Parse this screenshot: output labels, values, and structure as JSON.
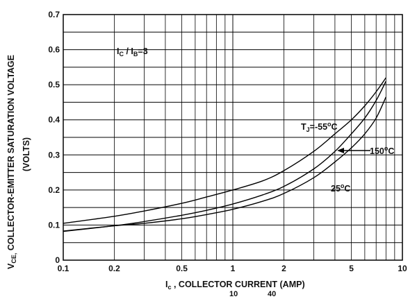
{
  "chart_data": {
    "type": "line",
    "xscale": "log",
    "xlim": [
      0.1,
      10
    ],
    "ylim": [
      0,
      0.7
    ],
    "grid": true,
    "xlabel_prefix": "I",
    "xlabel_sub": "c",
    "xlabel_rest": " , COLLECTOR CURRENT (AMP)",
    "ylabel_line1_prefix": "V",
    "ylabel_line1_sub": "CE,",
    "ylabel_line1_rest": " COLLECTOR-EMITTER SATURATION VOLTAGE",
    "ylabel_line2": "(VOLTS)",
    "x_ticks": [
      {
        "value": 0.1,
        "label": "0.1"
      },
      {
        "value": 0.2,
        "label": "0.2"
      },
      {
        "value": 0.5,
        "label": "0.5"
      },
      {
        "value": 1,
        "label": "1"
      },
      {
        "value": 2,
        "label": "2"
      },
      {
        "value": 5,
        "label": "5"
      },
      {
        "value": 10,
        "label": "10"
      }
    ],
    "y_ticks": [
      {
        "value": 0,
        "label": "0"
      },
      {
        "value": 0.1,
        "label": "0.1"
      },
      {
        "value": 0.2,
        "label": "0.2"
      },
      {
        "value": 0.3,
        "label": "0.3"
      },
      {
        "value": 0.4,
        "label": "0.4"
      },
      {
        "value": 0.5,
        "label": "0.5"
      },
      {
        "value": 0.6,
        "label": "0.6"
      },
      {
        "value": 0.7,
        "label": "0.7"
      }
    ],
    "condition": {
      "I1": "I",
      "s1": "C",
      "slash": " / I",
      "s2": "B",
      "rest": "=3"
    },
    "series": [
      {
        "name": "T_J=-55°C",
        "x": [
          0.1,
          0.2,
          0.3,
          0.5,
          0.7,
          1,
          1.5,
          2,
          3,
          4,
          5,
          6,
          7,
          8
        ],
        "y": [
          0.105,
          0.125,
          0.14,
          0.162,
          0.18,
          0.2,
          0.226,
          0.255,
          0.31,
          0.36,
          0.4,
          0.44,
          0.48,
          0.52
        ]
      },
      {
        "name": "150°C",
        "x": [
          0.1,
          0.2,
          0.3,
          0.5,
          0.7,
          1,
          1.5,
          2,
          3,
          4,
          5,
          6,
          7,
          8
        ],
        "y": [
          0.082,
          0.098,
          0.11,
          0.128,
          0.142,
          0.16,
          0.186,
          0.21,
          0.26,
          0.31,
          0.36,
          0.405,
          0.455,
          0.51
        ]
      },
      {
        "name": "25°C",
        "x": [
          0.1,
          0.2,
          0.3,
          0.5,
          0.7,
          1,
          1.5,
          2,
          3,
          4,
          5,
          6,
          7,
          8
        ],
        "y": [
          0.083,
          0.098,
          0.105,
          0.118,
          0.13,
          0.145,
          0.168,
          0.19,
          0.235,
          0.28,
          0.32,
          0.36,
          0.405,
          0.465
        ]
      }
    ],
    "labels": {
      "tj_main": "T",
      "tj_sub": "J",
      "tj_rest": "=-55",
      "deg_c": "C",
      "l150": "150",
      "l25": "25",
      "degree_symbol": "o"
    },
    "stray_marks": [
      "10",
      "40"
    ]
  }
}
